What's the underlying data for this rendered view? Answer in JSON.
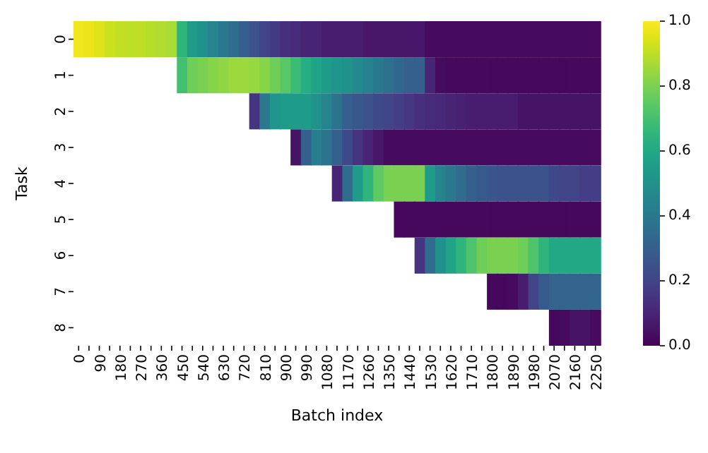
{
  "chart_data": {
    "type": "heatmap",
    "xlabel": "Batch index",
    "ylabel": "Task",
    "categories": [
      "0",
      null,
      "90",
      null,
      "180",
      null,
      "270",
      null,
      "360",
      null,
      "450",
      null,
      "540",
      null,
      "630",
      null,
      "720",
      null,
      "810",
      null,
      "900",
      null,
      "990",
      null,
      "1080",
      null,
      "1170",
      null,
      "1260",
      null,
      "1350",
      null,
      "1440",
      null,
      "1530",
      null,
      "1620",
      null,
      "1710",
      null,
      "1800",
      null,
      "1890",
      null,
      "1980",
      null,
      "2070",
      null,
      "2160",
      null,
      "2250"
    ],
    "y_categories": [
      "0",
      "1",
      "2",
      "3",
      "4",
      "5",
      "6",
      "7",
      "8"
    ],
    "cells": [
      [
        0.98,
        0.97,
        0.95,
        0.92,
        0.91,
        0.9,
        0.9,
        0.89,
        0.88,
        0.87,
        0.65,
        0.55,
        0.5,
        0.45,
        0.4,
        0.35,
        0.3,
        0.25,
        0.2,
        0.17,
        0.14,
        0.12,
        0.1,
        0.1,
        0.08,
        0.08,
        0.08,
        0.08,
        0.06,
        0.06,
        0.06,
        0.06,
        0.06,
        0.06,
        0.03,
        0.03,
        0.03,
        0.03,
        0.03,
        0.03,
        0.03,
        0.03,
        0.03,
        0.03,
        0.03,
        0.03,
        0.03,
        0.03,
        0.03,
        0.03,
        0.03
      ],
      [
        null,
        null,
        null,
        null,
        null,
        null,
        null,
        null,
        null,
        null,
        0.7,
        0.78,
        0.8,
        0.82,
        0.83,
        0.85,
        0.85,
        0.84,
        0.82,
        0.78,
        0.74,
        0.68,
        0.62,
        0.58,
        0.55,
        0.52,
        0.5,
        0.47,
        0.44,
        0.4,
        0.36,
        0.33,
        0.3,
        0.3,
        0.1,
        0.03,
        0.02,
        0.02,
        0.02,
        0.02,
        0.02,
        0.02,
        0.02,
        0.02,
        0.02,
        0.02,
        0.02,
        0.02,
        0.02,
        0.02,
        0.02
      ],
      [
        null,
        null,
        null,
        null,
        null,
        null,
        null,
        null,
        null,
        null,
        null,
        null,
        null,
        null,
        null,
        null,
        null,
        0.15,
        0.4,
        0.52,
        0.55,
        0.55,
        0.55,
        0.5,
        0.45,
        0.38,
        0.3,
        0.27,
        0.25,
        0.22,
        0.2,
        0.18,
        0.16,
        0.14,
        0.12,
        0.11,
        0.1,
        0.09,
        0.08,
        0.08,
        0.08,
        0.08,
        0.08,
        0.05,
        0.05,
        0.05,
        0.05,
        0.05,
        0.05,
        0.05,
        0.05
      ],
      [
        null,
        null,
        null,
        null,
        null,
        null,
        null,
        null,
        null,
        null,
        null,
        null,
        null,
        null,
        null,
        null,
        null,
        null,
        null,
        null,
        null,
        0.05,
        0.3,
        0.42,
        0.38,
        0.3,
        0.22,
        0.15,
        0.1,
        0.06,
        0.03,
        0.03,
        0.03,
        0.03,
        0.03,
        0.03,
        0.03,
        0.03,
        0.03,
        0.03,
        0.03,
        0.03,
        0.03,
        0.03,
        0.03,
        0.03,
        0.03,
        0.03,
        0.03,
        0.03,
        0.03
      ],
      [
        null,
        null,
        null,
        null,
        null,
        null,
        null,
        null,
        null,
        null,
        null,
        null,
        null,
        null,
        null,
        null,
        null,
        null,
        null,
        null,
        null,
        null,
        null,
        null,
        null,
        0.1,
        0.35,
        0.55,
        0.65,
        0.75,
        0.8,
        0.8,
        0.8,
        0.8,
        0.55,
        0.45,
        0.4,
        0.35,
        0.3,
        0.28,
        0.26,
        0.25,
        0.25,
        0.25,
        0.25,
        0.25,
        0.22,
        0.2,
        0.2,
        0.18,
        0.18
      ],
      [
        null,
        null,
        null,
        null,
        null,
        null,
        null,
        null,
        null,
        null,
        null,
        null,
        null,
        null,
        null,
        null,
        null,
        null,
        null,
        null,
        null,
        null,
        null,
        null,
        null,
        null,
        null,
        null,
        null,
        null,
        null,
        0.02,
        0.02,
        0.02,
        0.02,
        0.02,
        0.02,
        0.02,
        0.02,
        0.02,
        0.02,
        0.02,
        0.02,
        0.02,
        0.02,
        0.02,
        0.02,
        0.02,
        0.02,
        0.02,
        0.02
      ],
      [
        null,
        null,
        null,
        null,
        null,
        null,
        null,
        null,
        null,
        null,
        null,
        null,
        null,
        null,
        null,
        null,
        null,
        null,
        null,
        null,
        null,
        null,
        null,
        null,
        null,
        null,
        null,
        null,
        null,
        null,
        null,
        null,
        null,
        0.15,
        0.35,
        0.5,
        0.58,
        0.65,
        0.72,
        0.78,
        0.8,
        0.8,
        0.8,
        0.78,
        0.72,
        0.65,
        0.6,
        0.6,
        0.6,
        0.6,
        0.6
      ],
      [
        null,
        null,
        null,
        null,
        null,
        null,
        null,
        null,
        null,
        null,
        null,
        null,
        null,
        null,
        null,
        null,
        null,
        null,
        null,
        null,
        null,
        null,
        null,
        null,
        null,
        null,
        null,
        null,
        null,
        null,
        null,
        null,
        null,
        null,
        null,
        null,
        null,
        null,
        null,
        null,
        0.02,
        0.02,
        0.03,
        0.08,
        0.2,
        0.28,
        0.32,
        0.32,
        0.32,
        0.32,
        0.32
      ],
      [
        null,
        null,
        null,
        null,
        null,
        null,
        null,
        null,
        null,
        null,
        null,
        null,
        null,
        null,
        null,
        null,
        null,
        null,
        null,
        null,
        null,
        null,
        null,
        null,
        null,
        null,
        null,
        null,
        null,
        null,
        null,
        null,
        null,
        null,
        null,
        null,
        null,
        null,
        null,
        null,
        null,
        null,
        null,
        null,
        null,
        null,
        0.02,
        0.03,
        0.05,
        0.05,
        0.03
      ]
    ],
    "clim": [
      0,
      1
    ],
    "cticks": [
      {
        "value": 0,
        "label": "0.0"
      },
      {
        "value": 0.2,
        "label": "0.2"
      },
      {
        "value": 0.4,
        "label": "0.4"
      },
      {
        "value": 0.6,
        "label": "0.6"
      },
      {
        "value": 0.8,
        "label": "0.8"
      },
      {
        "value": 1,
        "label": "1.0"
      }
    ]
  }
}
